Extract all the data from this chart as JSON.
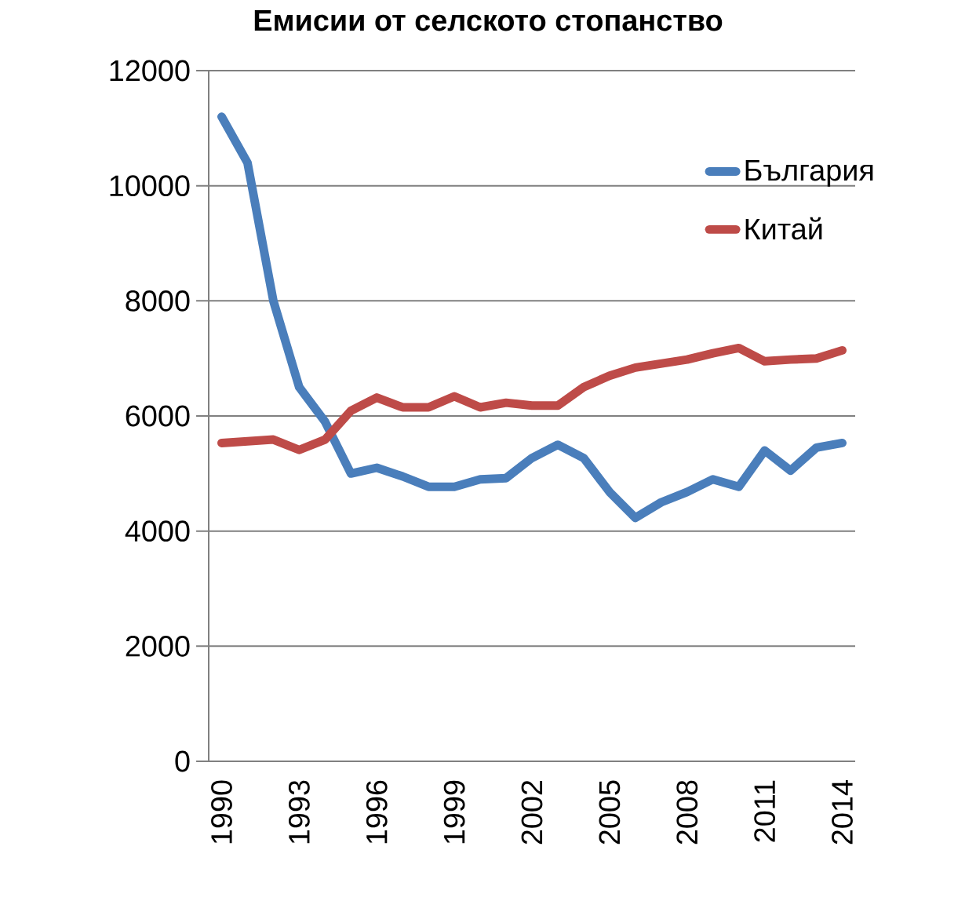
{
  "chart_data": {
    "type": "line",
    "title": "Емисии от селското стопанство",
    "categories": [
      "1990",
      null,
      null,
      "1993",
      null,
      null,
      "1996",
      null,
      null,
      "1999",
      null,
      null,
      "2002",
      null,
      null,
      "2005",
      null,
      null,
      "2008",
      null,
      null,
      "2011",
      null,
      null,
      "2014"
    ],
    "series": [
      {
        "name": "България",
        "color": "#4a7ebb",
        "values": [
          11200,
          10400,
          8000,
          6500,
          5900,
          5000,
          5100,
          4950,
          4770,
          4770,
          4900,
          4920,
          5270,
          5500,
          5270,
          4680,
          4230,
          4500,
          4680,
          4900,
          4770,
          5400,
          5050,
          5450,
          5530
        ]
      },
      {
        "name": "Китай",
        "color": "#be4b48",
        "values": [
          5530,
          5560,
          5590,
          5410,
          5590,
          6090,
          6320,
          6150,
          6150,
          6340,
          6150,
          6230,
          6180,
          6180,
          6500,
          6700,
          6840,
          6910,
          6980,
          7090,
          7180,
          6950,
          6980,
          7000,
          7140
        ]
      }
    ],
    "ylim": [
      0,
      12000
    ],
    "yticks": [
      0,
      2000,
      4000,
      6000,
      8000,
      10000,
      12000
    ],
    "grid": "y",
    "legend": "right",
    "marker": "none",
    "line_style": "solid"
  }
}
